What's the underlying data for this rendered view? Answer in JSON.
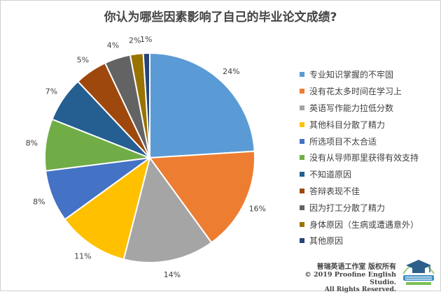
{
  "chart_data": {
    "type": "pie",
    "title": "你认为哪些因素影响了自己的毕业论文成绩?",
    "categories": [
      "专业知识掌握的不牢固",
      "没有花太多时间在学习上",
      "英语写作能力拉低分数",
      "其他科目分散了精力",
      "所选项目不太合适",
      "没有从导师那里获得有效支持",
      "不知道原因",
      "答辩表现不佳",
      "因为打工分散了精力",
      "身体原因（生病或遭遇意外）",
      "其他原因"
    ],
    "values": [
      24,
      16,
      14,
      11,
      8,
      8,
      7,
      5,
      4,
      2,
      1
    ],
    "labels": [
      "24%",
      "16%",
      "14%",
      "11%",
      "8%",
      "8%",
      "7%",
      "5%",
      "4%",
      "2%",
      "1%"
    ],
    "colors": [
      "#5B9BD5",
      "#ED7D31",
      "#A5A5A5",
      "#FFC000",
      "#4472C4",
      "#70AD47",
      "#255E91",
      "#9E480E",
      "#636363",
      "#997300",
      "#264478"
    ],
    "legend_position": "right"
  },
  "watermark": {
    "line1": "普瑞英语工作室 版权所有",
    "line2": "© 2019 Proofine English Studio.",
    "line3": "All Rights Reserved."
  }
}
